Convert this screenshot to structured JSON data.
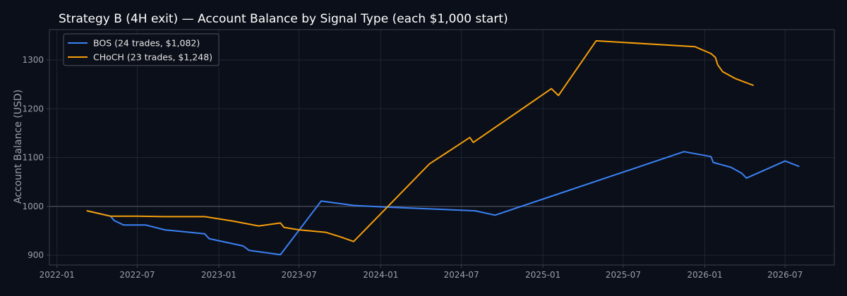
{
  "chart_data": {
    "type": "line",
    "title": "Strategy B (4H exit) — Account Balance by Signal Type (each $1,000 start)",
    "xlabel": "",
    "ylabel": "Account Balance (USD)",
    "xlim": [
      "2021-12-15",
      "2026-10-20"
    ],
    "ylim": [
      880,
      1362
    ],
    "x_ticks": [
      "2022-01-01",
      "2022-07-01",
      "2023-01-01",
      "2023-07-01",
      "2024-01-01",
      "2024-07-01",
      "2025-01-01",
      "2025-07-01",
      "2026-01-01",
      "2026-07-01"
    ],
    "x_tick_labels": [
      "2022-01",
      "2022-07",
      "2023-01",
      "2023-07",
      "2024-01",
      "2024-07",
      "2025-01",
      "2025-07",
      "2026-01",
      "2026-07"
    ],
    "y_ticks": [
      900,
      1000,
      1100,
      1200,
      1300
    ],
    "y_tick_labels": [
      "900",
      "1000",
      "1100",
      "1200",
      "1300"
    ],
    "grid": true,
    "legend_position": "top-left",
    "baseline": 1000,
    "colors": {
      "background": "#0b0f19",
      "grid": "#1f2533",
      "spine": "#3a4050",
      "baseline": "#4a5060",
      "bos": "#3b82f6",
      "choch": "#f59e0b"
    },
    "series": [
      {
        "name": "BOS (24 trades, $1,082)",
        "color": "#3b82f6",
        "x": [
          "2022-03-15",
          "2022-05-02",
          "2022-05-10",
          "2022-05-31",
          "2022-07-20",
          "2022-09-01",
          "2022-11-30",
          "2022-12-10",
          "2023-02-25",
          "2023-03-10",
          "2023-05-20",
          "2023-08-20",
          "2023-11-01",
          "2024-01-01",
          "2024-08-01",
          "2024-09-15",
          "2025-01-01",
          "2025-11-15",
          "2026-01-15",
          "2026-01-20",
          "2026-03-01",
          "2026-03-25",
          "2026-04-05",
          "2026-07-01",
          "2026-08-01"
        ],
        "y": [
          990,
          980,
          971,
          962,
          962,
          952,
          944,
          934,
          919,
          910,
          901,
          1011,
          1002,
          999,
          991,
          982,
          1015,
          1112,
          1102,
          1090,
          1080,
          1068,
          1058,
          1093,
          1082
        ]
      },
      {
        "name": "CHoCH (23 trades, $1,248)",
        "color": "#f59e0b",
        "x": [
          "2022-03-10",
          "2022-05-01",
          "2022-07-01",
          "2022-09-01",
          "2022-11-30",
          "2023-02-01",
          "2023-04-01",
          "2023-05-20",
          "2023-05-28",
          "2023-07-01",
          "2023-08-30",
          "2023-10-01",
          "2023-11-01",
          "2024-04-20",
          "2024-07-20",
          "2024-07-28",
          "2025-01-20",
          "2025-02-05",
          "2025-05-01",
          "2025-12-10",
          "2026-01-15",
          "2026-01-25",
          "2026-01-30",
          "2026-02-10",
          "2026-03-10",
          "2026-04-20"
        ],
        "y": [
          991,
          980,
          980,
          979,
          979,
          970,
          960,
          966,
          957,
          952,
          947,
          938,
          928,
          1087,
          1141,
          1131,
          1241,
          1227,
          1339,
          1327,
          1313,
          1305,
          1290,
          1276,
          1262,
          1248
        ]
      }
    ]
  }
}
